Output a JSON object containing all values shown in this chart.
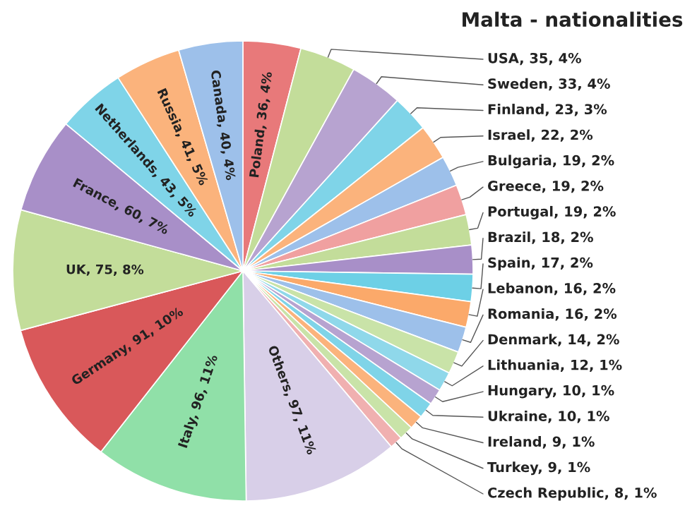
{
  "chart_data": {
    "type": "pie",
    "title": "Malta - nationalities",
    "categories": [
      "Poland",
      "USA",
      "Sweden",
      "Finland",
      "Israel",
      "Bulgaria",
      "Greece",
      "Portugal",
      "Brazil",
      "Spain",
      "Lebanon",
      "Romania",
      "Denmark",
      "Lithuania",
      "Hungary",
      "Ukraine",
      "Ireland",
      "Turkey",
      "Czech Republic",
      "Others",
      "Italy",
      "Germany",
      "UK",
      "France",
      "Netherlands",
      "Russia",
      "Canada"
    ],
    "values": [
      36,
      35,
      33,
      23,
      22,
      19,
      19,
      19,
      18,
      17,
      16,
      16,
      14,
      12,
      10,
      10,
      9,
      9,
      8,
      97,
      96,
      91,
      75,
      60,
      43,
      41,
      40
    ],
    "value_labels": [
      "36, 4%",
      "35, 4%",
      "33, 4%",
      "23, 3%",
      "22, 2%",
      "19, 2%",
      "19, 2%",
      "19, 2%",
      "18, 2%",
      "17, 2%",
      "16, 2%",
      "16, 2%",
      "14, 2%",
      "12, 1%",
      "10, 1%",
      "10, 1%",
      "9, 1%",
      "9, 1%",
      "8, 1%",
      "97, 11%",
      "96, 11%",
      "91, 10%",
      "75, 8%",
      "60, 7%",
      "43, 5%",
      "41, 5%",
      "40, 4%"
    ],
    "colors": [
      "#e8797a",
      "#c3dd9a",
      "#b7a3d0",
      "#7fd4e8",
      "#fbb37c",
      "#9dc0ea",
      "#f0a0a0",
      "#c3dd9a",
      "#a88fc8",
      "#6dd0e6",
      "#fba96a",
      "#9dc0ea",
      "#c9e3a8",
      "#8fd8ea",
      "#b7a3d0",
      "#7fd4e8",
      "#fbb37c",
      "#c9e3a8",
      "#f0b0b0",
      "#d8cfe8",
      "#90e0a8",
      "#d9585a",
      "#c3dd9a",
      "#a88fc8",
      "#7fd4e8",
      "#fbb37c",
      "#9dc0ea"
    ]
  }
}
